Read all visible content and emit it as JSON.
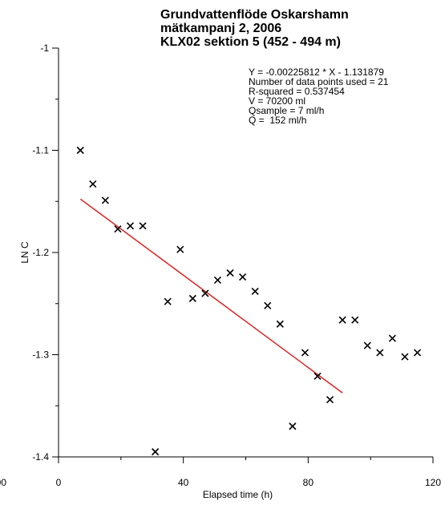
{
  "chart_data": {
    "type": "scatter",
    "title": [
      "Grundvattenflöde Oskarshamn",
      "mätkampanj 2, 2006",
      "KLX02 sektion 5 (452 - 494 m)"
    ],
    "xlabel": "Elapsed time (h)",
    "ylabel": "LN C",
    "xlim": [
      0,
      120
    ],
    "ylim": [
      -1.4,
      -1.0
    ],
    "x_ticks": [
      0,
      40,
      80,
      120
    ],
    "x_tick_labels": [
      "0",
      "40",
      "80",
      "120"
    ],
    "x_extra_tick_label": "00",
    "y_ticks": [
      -1.4,
      -1.3,
      -1.2,
      -1.1,
      -1.0
    ],
    "y_tick_labels": [
      "-1.4",
      "-1.3",
      "-1.2",
      "-1.1",
      "-1"
    ],
    "marker": "x",
    "points": [
      [
        7,
        -1.1
      ],
      [
        11,
        -1.133
      ],
      [
        15,
        -1.149
      ],
      [
        19,
        -1.177
      ],
      [
        23,
        -1.174
      ],
      [
        27,
        -1.174
      ],
      [
        31,
        -1.395
      ],
      [
        35,
        -1.248
      ],
      [
        39,
        -1.197
      ],
      [
        43,
        -1.245
      ],
      [
        47,
        -1.24
      ],
      [
        51,
        -1.227
      ],
      [
        55,
        -1.22
      ],
      [
        59,
        -1.224
      ],
      [
        63,
        -1.238
      ],
      [
        67,
        -1.252
      ],
      [
        71,
        -1.27
      ],
      [
        75,
        -1.37
      ],
      [
        79,
        -1.298
      ],
      [
        83,
        -1.321
      ],
      [
        87,
        -1.344
      ],
      [
        91,
        -1.266
      ],
      [
        95,
        -1.266
      ],
      [
        99,
        -1.291
      ],
      [
        103,
        -1.298
      ],
      [
        107,
        -1.284
      ],
      [
        111,
        -1.302
      ],
      [
        115,
        -1.298
      ]
    ],
    "fit_line": {
      "slope": -0.00225812,
      "intercept": -1.131879,
      "x_range": [
        7,
        91
      ],
      "color": "#dd2222"
    },
    "stats_lines": [
      "Y = -0.00225812 * X - 1.131879",
      "Number of data points used = 21",
      "R-squared = 0.537454",
      "V = 70200 ml",
      "Qsample = 7 ml/h",
      "Q =  152 ml/h"
    ]
  }
}
